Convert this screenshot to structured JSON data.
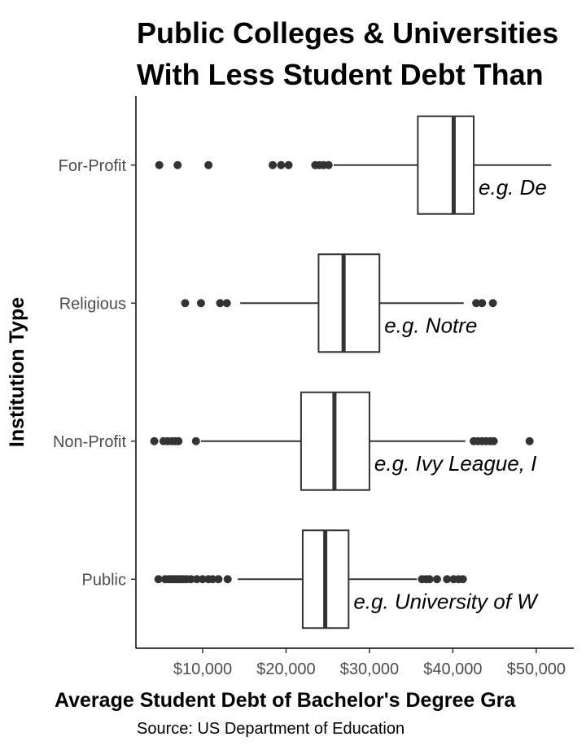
{
  "chart_data": {
    "type": "boxplot",
    "orientation": "horizontal",
    "title_lines": [
      "Public Colleges & Universities",
      "With Less Student Debt Than"
    ],
    "xlabel": "Average Student Debt of Bachelor's Degree Gra",
    "ylabel": "Institution Type",
    "source": "Source: US Department of Education",
    "xlim": [
      2000,
      54500
    ],
    "x_ticks": [
      10000,
      20000,
      30000,
      40000,
      50000
    ],
    "x_tick_labels": [
      "$10,000",
      "$20,000",
      "$30,000",
      "$40,000",
      "$50,000"
    ],
    "categories": [
      "Public",
      "Non-Profit",
      "Religious",
      "For-Profit"
    ],
    "boxes": [
      {
        "category": "Public",
        "whisker_low": 14200,
        "q1": 22000,
        "median": 24700,
        "q3": 27500,
        "whisker_high": 35700,
        "outliers": [
          4700,
          5500,
          5900,
          6200,
          6500,
          6800,
          7100,
          7400,
          7700,
          8100,
          8600,
          9300,
          10000,
          10700,
          11200,
          11900,
          13000,
          36300,
          36800,
          37200,
          38100,
          39300,
          40100,
          40700,
          41200
        ],
        "annotation": "e.g. University of W"
      },
      {
        "category": "Non-Profit",
        "whisker_low": 9800,
        "q1": 21800,
        "median": 25800,
        "q3": 30000,
        "whisker_high": 41500,
        "outliers": [
          4200,
          5300,
          5800,
          6300,
          6700,
          7100,
          9200,
          42500,
          43000,
          43500,
          44000,
          44500,
          44900,
          49200
        ],
        "annotation": "e.g. Ivy League, I"
      },
      {
        "category": "Religious",
        "whisker_low": 14500,
        "q1": 23900,
        "median": 26900,
        "q3": 31200,
        "whisker_high": 41300,
        "outliers": [
          7900,
          9800,
          12100,
          12900,
          42800,
          43500,
          44800
        ],
        "annotation": "e.g. Notre"
      },
      {
        "category": "For-Profit",
        "whisker_low": 25700,
        "q1": 35800,
        "median": 40100,
        "q3": 42500,
        "whisker_high": 51800,
        "outliers": [
          4800,
          7000,
          10700,
          18400,
          19400,
          20300,
          23500,
          24000,
          24500,
          25100
        ],
        "annotation": "e.g. De"
      }
    ],
    "colors": {
      "box_line": "#333333",
      "box_fill": "#ffffff",
      "point": "#333333",
      "axis": "#000000",
      "tick_text": "#4d4d4d"
    }
  }
}
